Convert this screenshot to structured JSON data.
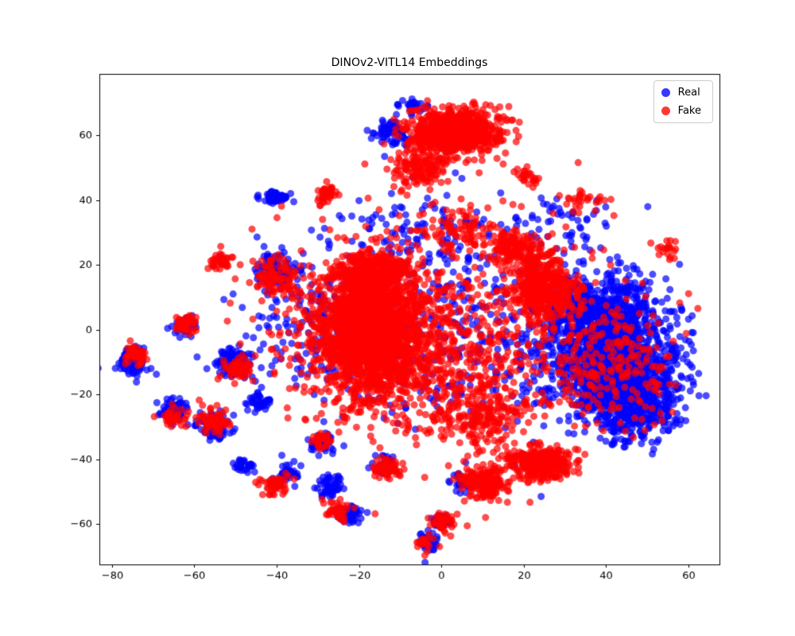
{
  "chart_data": {
    "type": "scatter",
    "title": "DINOv2-VITL14 Embeddings",
    "xlabel": "",
    "ylabel": "",
    "xlim": [
      -83,
      67.5
    ],
    "ylim": [
      -72.5,
      79
    ],
    "x_ticks": [
      -80,
      -60,
      -40,
      -20,
      0,
      20,
      40,
      60
    ],
    "y_ticks": [
      -60,
      -40,
      -20,
      0,
      20,
      40,
      60
    ],
    "grid": false,
    "legend": {
      "position": "upper right",
      "entries": [
        {
          "label": "Real",
          "color": "#0000ff"
        },
        {
          "label": "Fake",
          "color": "#ff0000"
        }
      ]
    },
    "marker": {
      "radius_px": 4.5,
      "alpha": 0.7
    },
    "seed": 7,
    "clusters": [
      {
        "series": "Real",
        "cx": 40,
        "cy": 6,
        "sx": 6,
        "sy": 6,
        "n": 500
      },
      {
        "series": "Real",
        "cx": 44,
        "cy": -14,
        "sx": 6,
        "sy": 7,
        "n": 850
      },
      {
        "series": "Real",
        "cx": 36,
        "cy": -6,
        "sx": 8,
        "sy": 9,
        "n": 500
      },
      {
        "series": "Real",
        "cx": 48,
        "cy": -25,
        "sx": 5,
        "sy": 5,
        "n": 260
      },
      {
        "series": "Real",
        "cx": 58,
        "cy": -8,
        "sx": 2.5,
        "sy": 8,
        "n": 40
      },
      {
        "series": "Real",
        "cx": 2,
        "cy": 0,
        "sx": 20,
        "sy": 15,
        "n": 420
      },
      {
        "series": "Real",
        "cx": -30,
        "cy": 5,
        "sx": 9,
        "sy": 10,
        "n": 160
      },
      {
        "series": "Real",
        "cx": -5,
        "cy": 30,
        "sx": 12,
        "sy": 7,
        "n": 110
      },
      {
        "series": "Real",
        "cx": 30,
        "cy": 33,
        "sx": 6,
        "sy": 4,
        "n": 50
      },
      {
        "series": "Real",
        "cx": -75,
        "cy": -10,
        "sx": 1.8,
        "sy": 2.2,
        "n": 130
      },
      {
        "series": "Real",
        "cx": -65,
        "cy": -25,
        "sx": 1.5,
        "sy": 1.6,
        "n": 90
      },
      {
        "series": "Real",
        "cx": -55,
        "cy": -30,
        "sx": 2,
        "sy": 2,
        "n": 80
      },
      {
        "series": "Real",
        "cx": -50,
        "cy": -10,
        "sx": 2.4,
        "sy": 2,
        "n": 110
      },
      {
        "series": "Real",
        "cx": -62,
        "cy": 1,
        "sx": 1.5,
        "sy": 1.5,
        "n": 40
      },
      {
        "series": "Real",
        "cx": -40,
        "cy": 18,
        "sx": 2.5,
        "sy": 2.5,
        "n": 90
      },
      {
        "series": "Real",
        "cx": -40,
        "cy": 41,
        "sx": 2,
        "sy": 0.8,
        "n": 60
      },
      {
        "series": "Real",
        "cx": -44,
        "cy": -22,
        "sx": 1.5,
        "sy": 1.5,
        "n": 40
      },
      {
        "series": "Real",
        "cx": -48,
        "cy": -42,
        "sx": 1.2,
        "sy": 1,
        "n": 30
      },
      {
        "series": "Real",
        "cx": -37,
        "cy": -44,
        "sx": 1.5,
        "sy": 1.5,
        "n": 40
      },
      {
        "series": "Real",
        "cx": -29,
        "cy": -35,
        "sx": 1.5,
        "sy": 1.5,
        "n": 40
      },
      {
        "series": "Real",
        "cx": -27,
        "cy": -48,
        "sx": 1.6,
        "sy": 1.6,
        "n": 50
      },
      {
        "series": "Real",
        "cx": -22,
        "cy": -57,
        "sx": 1.5,
        "sy": 1.5,
        "n": 50
      },
      {
        "series": "Real",
        "cx": -13,
        "cy": -42,
        "sx": 1.5,
        "sy": 1.5,
        "n": 40
      },
      {
        "series": "Real",
        "cx": -3,
        "cy": -65,
        "sx": 1.2,
        "sy": 1.5,
        "n": 40
      },
      {
        "series": "Real",
        "cx": 0,
        "cy": -59,
        "sx": 1,
        "sy": 1,
        "n": 30
      },
      {
        "series": "Real",
        "cx": 5,
        "cy": -47,
        "sx": 1.2,
        "sy": 1.2,
        "n": 30
      },
      {
        "series": "Real",
        "cx": -12,
        "cy": 61,
        "sx": 2,
        "sy": 2,
        "n": 70
      },
      {
        "series": "Real",
        "cx": -7,
        "cy": 69,
        "sx": 2,
        "sy": 1.5,
        "n": 25
      },
      {
        "series": "Fake",
        "cx": -18,
        "cy": 0,
        "sx": 6,
        "sy": 9,
        "n": 1600
      },
      {
        "series": "Fake",
        "cx": -16,
        "cy": 18,
        "sx": 4.5,
        "sy": 3.5,
        "n": 350
      },
      {
        "series": "Fake",
        "cx": -12,
        "cy": -5,
        "sx": 11,
        "sy": 11,
        "n": 500
      },
      {
        "series": "Fake",
        "cx": 3,
        "cy": 61,
        "sx": 5.5,
        "sy": 3.5,
        "n": 800
      },
      {
        "series": "Fake",
        "cx": -5,
        "cy": 50,
        "sx": 3,
        "sy": 3,
        "n": 140
      },
      {
        "series": "Fake",
        "cx": 25,
        "cy": 13,
        "sx": 4,
        "sy": 5,
        "n": 450
      },
      {
        "series": "Fake",
        "cx": 18,
        "cy": 25,
        "sx": 3,
        "sy": 3,
        "n": 140
      },
      {
        "series": "Fake",
        "cx": 5,
        "cy": 30,
        "sx": 5,
        "sy": 4,
        "n": 100
      },
      {
        "series": "Fake",
        "cx": 24,
        "cy": -41,
        "sx": 4,
        "sy": 2.5,
        "n": 300
      },
      {
        "series": "Fake",
        "cx": 11,
        "cy": -47,
        "sx": 2.5,
        "sy": 2.5,
        "n": 180
      },
      {
        "series": "Fake",
        "cx": 10,
        "cy": -27,
        "sx": 5,
        "sy": 5,
        "n": 170
      },
      {
        "series": "Fake",
        "cx": 2,
        "cy": -5,
        "sx": 22,
        "sy": 16,
        "n": 700
      },
      {
        "series": "Fake",
        "cx": 42,
        "cy": -12,
        "sx": 8,
        "sy": 9,
        "n": 170
      },
      {
        "series": "Fake",
        "cx": -74,
        "cy": -8,
        "sx": 1.5,
        "sy": 1.5,
        "n": 50
      },
      {
        "series": "Fake",
        "cx": -65,
        "cy": -27,
        "sx": 1.5,
        "sy": 1.5,
        "n": 40
      },
      {
        "series": "Fake",
        "cx": -55,
        "cy": -28,
        "sx": 2,
        "sy": 2,
        "n": 60
      },
      {
        "series": "Fake",
        "cx": -50,
        "cy": -12,
        "sx": 2,
        "sy": 2,
        "n": 50
      },
      {
        "series": "Fake",
        "cx": -62,
        "cy": 2,
        "sx": 1.5,
        "sy": 1.5,
        "n": 40
      },
      {
        "series": "Fake",
        "cx": -40,
        "cy": 16,
        "sx": 2.5,
        "sy": 2.5,
        "n": 90
      },
      {
        "series": "Fake",
        "cx": -53,
        "cy": 21,
        "sx": 1.5,
        "sy": 1.5,
        "n": 40
      },
      {
        "series": "Fake",
        "cx": -40,
        "cy": -48,
        "sx": 1.6,
        "sy": 1.6,
        "n": 50
      },
      {
        "series": "Fake",
        "cx": -25,
        "cy": -56,
        "sx": 1.5,
        "sy": 1.5,
        "n": 40
      },
      {
        "series": "Fake",
        "cx": -13,
        "cy": -43,
        "sx": 1.6,
        "sy": 1.6,
        "n": 60
      },
      {
        "series": "Fake",
        "cx": -28,
        "cy": 42,
        "sx": 1.5,
        "sy": 1.5,
        "n": 40
      },
      {
        "series": "Fake",
        "cx": 0,
        "cy": -60,
        "sx": 1.5,
        "sy": 1.5,
        "n": 40
      },
      {
        "series": "Fake",
        "cx": -4,
        "cy": -66,
        "sx": 1,
        "sy": 1,
        "n": 20
      },
      {
        "series": "Fake",
        "cx": 6,
        "cy": -47,
        "sx": 1,
        "sy": 1,
        "n": 25
      },
      {
        "series": "Fake",
        "cx": 35,
        "cy": 40,
        "sx": 3,
        "sy": 2,
        "n": 30
      },
      {
        "series": "Fake",
        "cx": 20,
        "cy": 47,
        "sx": 1.5,
        "sy": 1.5,
        "n": 25
      },
      {
        "series": "Fake",
        "cx": 55,
        "cy": 25,
        "sx": 2,
        "sy": 2,
        "n": 20
      },
      {
        "series": "Fake",
        "cx": -29,
        "cy": -34,
        "sx": 1.5,
        "sy": 1.5,
        "n": 30
      }
    ]
  }
}
